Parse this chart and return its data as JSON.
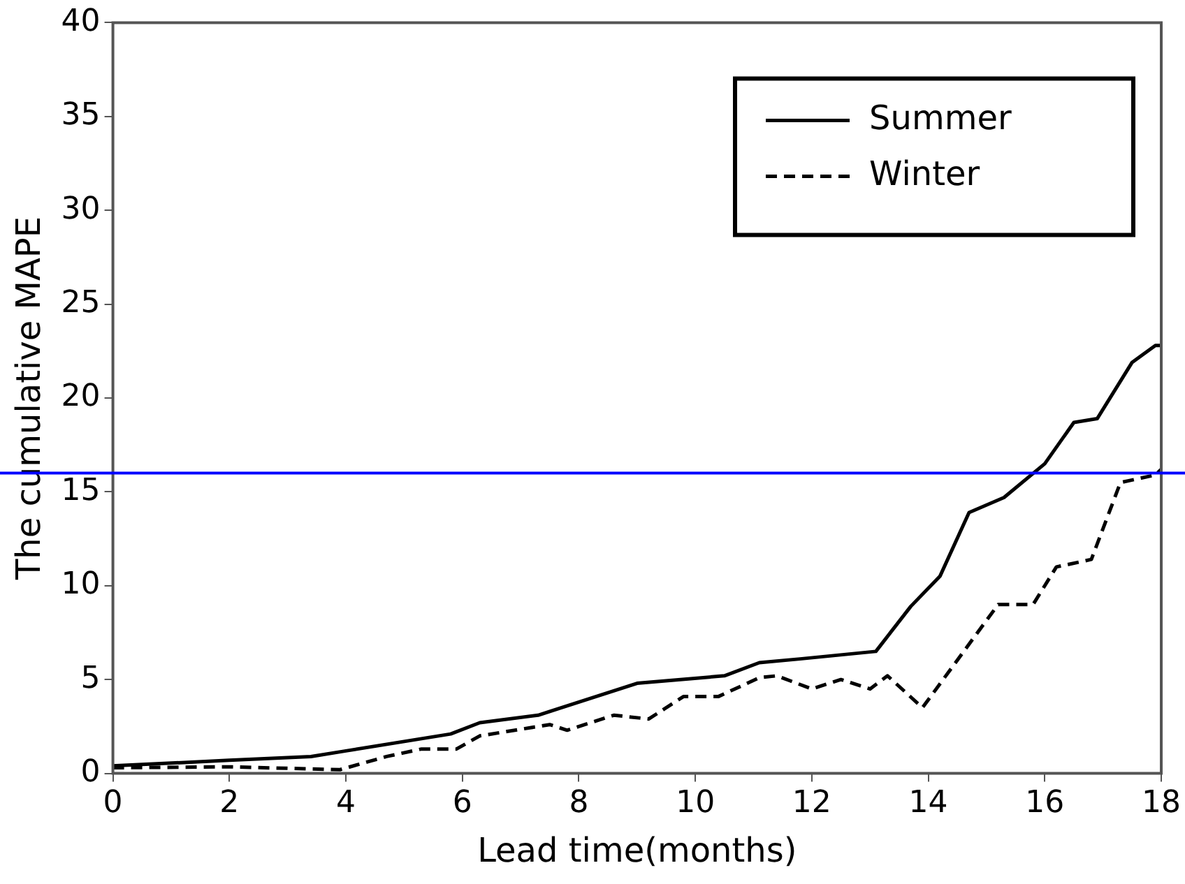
{
  "chart_data": {
    "type": "line",
    "xlabel": "Lead time(months)",
    "ylabel": "The cumulative MAPE",
    "xlim": [
      0,
      18
    ],
    "xticks": [
      0,
      2,
      4,
      6,
      8,
      10,
      12,
      14,
      16,
      18
    ],
    "ylim": [
      0,
      40
    ],
    "yticks": [
      0,
      5,
      10,
      15,
      20,
      25,
      30,
      35,
      40
    ],
    "grid": false,
    "legend": "top right",
    "marker": "none",
    "series": [
      {
        "name": "Summer",
        "color": "#000000",
        "line_style": "solid",
        "x": [
          0,
          2.0,
          3.4,
          4.0,
          5.8,
          6.3,
          7.3,
          9.0,
          10.5,
          11.1,
          11.8,
          13.1,
          13.7,
          14.2,
          14.7,
          15.3,
          16.0,
          16.5,
          16.9,
          17.5,
          17.9,
          18
        ],
        "values": [
          0.4,
          0.7,
          0.9,
          1.2,
          2.1,
          2.7,
          3.1,
          4.8,
          5.2,
          5.9,
          6.1,
          6.5,
          8.9,
          10.5,
          13.9,
          14.7,
          16.5,
          18.7,
          18.9,
          21.9,
          22.8,
          22.8
        ]
      },
      {
        "name": "Winter",
        "color": "#000000",
        "line_style": "dashed",
        "x": [
          0,
          2.0,
          3.9,
          4.7,
          5.3,
          5.9,
          6.3,
          7.5,
          7.8,
          8.6,
          9.2,
          9.8,
          10.4,
          11.1,
          11.4,
          12.0,
          12.5,
          13.0,
          13.3,
          13.9,
          15.2,
          15.8,
          16.2,
          16.8,
          17.3,
          17.9,
          18
        ],
        "values": [
          0.3,
          0.35,
          0.2,
          0.9,
          1.3,
          1.3,
          2.0,
          2.6,
          2.3,
          3.1,
          2.9,
          4.1,
          4.1,
          5.1,
          5.2,
          4.5,
          5.0,
          4.5,
          5.2,
          3.5,
          9.0,
          9.0,
          11.0,
          11.4,
          15.5,
          15.9,
          16.2
        ]
      }
    ],
    "ref_lines": [
      {
        "axis": "y",
        "value": 16,
        "color": "#0000ff"
      }
    ]
  }
}
